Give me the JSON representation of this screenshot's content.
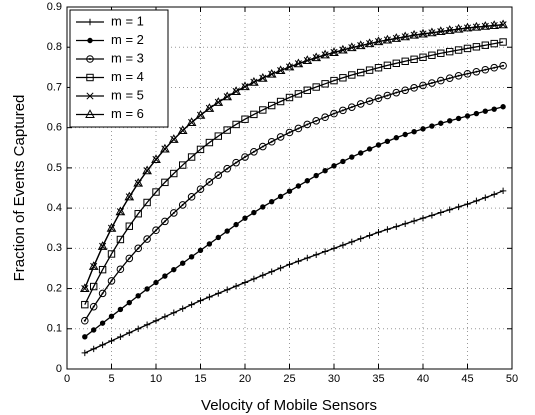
{
  "chart_data": {
    "type": "line",
    "xlabel": "Velocity of Mobile Sensors",
    "ylabel": "Fraction of Events Captured",
    "xlim": [
      0,
      50
    ],
    "xticks": [
      0,
      5,
      10,
      15,
      20,
      25,
      30,
      35,
      40,
      45,
      50
    ],
    "ylim": [
      0,
      0.9
    ],
    "yticks": [
      0,
      0.1,
      0.2,
      0.3,
      0.4,
      0.5,
      0.6,
      0.7,
      0.8,
      0.9
    ],
    "grid": true,
    "legend": "upper-left",
    "x": [
      2,
      3,
      4,
      5,
      6,
      7,
      8,
      9,
      10,
      11,
      12,
      13,
      14,
      15,
      16,
      17,
      18,
      19,
      20,
      21,
      22,
      23,
      24,
      25,
      26,
      27,
      28,
      29,
      30,
      31,
      32,
      33,
      34,
      35,
      36,
      37,
      38,
      39,
      40,
      41,
      42,
      43,
      44,
      45,
      46,
      47,
      48,
      49
    ],
    "series": [
      {
        "name": "m = 1",
        "color": "#000000",
        "marker": "plus",
        "values": [
          0.04,
          0.05,
          0.06,
          0.07,
          0.08,
          0.09,
          0.1,
          0.11,
          0.12,
          0.13,
          0.14,
          0.15,
          0.16,
          0.17,
          0.179,
          0.188,
          0.197,
          0.206,
          0.215,
          0.224,
          0.233,
          0.242,
          0.251,
          0.26,
          0.268,
          0.276,
          0.284,
          0.292,
          0.3,
          0.308,
          0.316,
          0.324,
          0.332,
          0.34,
          0.347,
          0.354,
          0.361,
          0.368,
          0.375,
          0.382,
          0.389,
          0.396,
          0.403,
          0.41,
          0.418,
          0.426,
          0.434,
          0.443
        ]
      },
      {
        "name": "m = 2",
        "color": "#000000",
        "marker": "dot",
        "values": [
          0.08,
          0.097,
          0.114,
          0.131,
          0.148,
          0.165,
          0.182,
          0.199,
          0.215,
          0.231,
          0.247,
          0.263,
          0.279,
          0.295,
          0.311,
          0.327,
          0.343,
          0.359,
          0.375,
          0.389,
          0.403,
          0.416,
          0.429,
          0.442,
          0.455,
          0.468,
          0.481,
          0.493,
          0.505,
          0.516,
          0.527,
          0.537,
          0.547,
          0.557,
          0.566,
          0.575,
          0.583,
          0.59,
          0.597,
          0.604,
          0.611,
          0.617,
          0.623,
          0.629,
          0.635,
          0.641,
          0.646,
          0.652
        ]
      },
      {
        "name": "m = 3",
        "color": "#000000",
        "marker": "circle-dot",
        "values": [
          0.12,
          0.155,
          0.188,
          0.219,
          0.248,
          0.275,
          0.3,
          0.323,
          0.345,
          0.367,
          0.388,
          0.408,
          0.428,
          0.447,
          0.465,
          0.482,
          0.498,
          0.513,
          0.527,
          0.54,
          0.553,
          0.565,
          0.577,
          0.588,
          0.598,
          0.608,
          0.617,
          0.626,
          0.635,
          0.643,
          0.651,
          0.659,
          0.666,
          0.673,
          0.68,
          0.687,
          0.693,
          0.699,
          0.705,
          0.711,
          0.717,
          0.723,
          0.729,
          0.734,
          0.739,
          0.744,
          0.749,
          0.754
        ]
      },
      {
        "name": "m = 4",
        "color": "#000000",
        "marker": "square",
        "values": [
          0.16,
          0.205,
          0.247,
          0.286,
          0.322,
          0.355,
          0.386,
          0.414,
          0.44,
          0.464,
          0.486,
          0.507,
          0.527,
          0.546,
          0.563,
          0.579,
          0.594,
          0.608,
          0.621,
          0.633,
          0.644,
          0.655,
          0.665,
          0.675,
          0.684,
          0.693,
          0.701,
          0.709,
          0.717,
          0.724,
          0.731,
          0.737,
          0.743,
          0.749,
          0.755,
          0.76,
          0.765,
          0.77,
          0.775,
          0.78,
          0.785,
          0.789,
          0.793,
          0.797,
          0.801,
          0.805,
          0.809,
          0.813
        ]
      },
      {
        "name": "m = 5",
        "color": "#000000",
        "marker": "x",
        "values": [
          0.2,
          0.255,
          0.305,
          0.35,
          0.391,
          0.428,
          0.462,
          0.493,
          0.521,
          0.547,
          0.571,
          0.593,
          0.613,
          0.631,
          0.648,
          0.663,
          0.677,
          0.69,
          0.702,
          0.713,
          0.723,
          0.733,
          0.742,
          0.751,
          0.759,
          0.767,
          0.774,
          0.781,
          0.787,
          0.793,
          0.799,
          0.804,
          0.809,
          0.814,
          0.818,
          0.822,
          0.826,
          0.83,
          0.833,
          0.836,
          0.839,
          0.842,
          0.845,
          0.848,
          0.85,
          0.852,
          0.854,
          0.856
        ]
      },
      {
        "name": "m = 6",
        "color": "#000000",
        "marker": "triangle",
        "values": [
          0.2,
          0.255,
          0.305,
          0.35,
          0.391,
          0.428,
          0.462,
          0.493,
          0.521,
          0.547,
          0.571,
          0.593,
          0.613,
          0.631,
          0.648,
          0.663,
          0.677,
          0.69,
          0.702,
          0.713,
          0.723,
          0.733,
          0.742,
          0.751,
          0.759,
          0.767,
          0.774,
          0.781,
          0.787,
          0.793,
          0.799,
          0.804,
          0.809,
          0.814,
          0.818,
          0.822,
          0.826,
          0.83,
          0.833,
          0.836,
          0.839,
          0.842,
          0.845,
          0.848,
          0.85,
          0.852,
          0.854,
          0.856
        ]
      }
    ]
  }
}
